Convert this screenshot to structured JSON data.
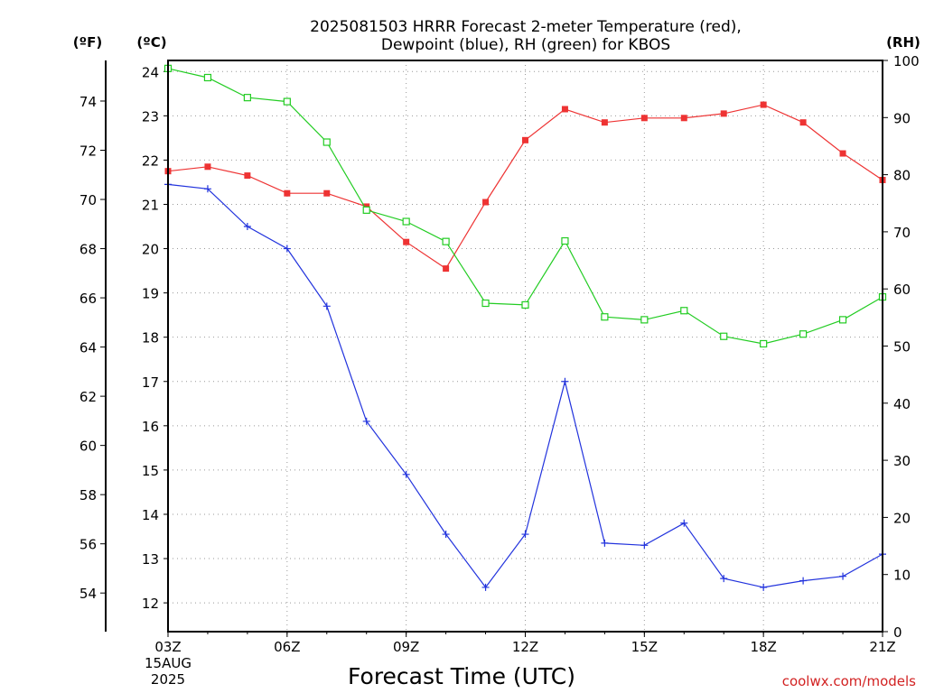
{
  "chart_data": {
    "type": "line",
    "title_line1": "2025081503 HRRR Forecast 2-meter Temperature (red),",
    "title_line2": "Dewpoint (blue), RH (green) for KBOS",
    "xlabel": "Forecast Time (UTC)",
    "credit": "coolwx.com/models",
    "unit_f": "(ºF)",
    "unit_c": "(ºC)",
    "unit_rh": "(RH)",
    "x_hours": [
      3,
      4,
      5,
      6,
      7,
      8,
      9,
      10,
      11,
      12,
      13,
      14,
      15,
      16,
      17,
      18,
      19,
      20,
      21
    ],
    "x_range": [
      3,
      21
    ],
    "x_ticks": [
      {
        "hour": 3,
        "label": "03Z"
      },
      {
        "hour": 6,
        "label": "06Z"
      },
      {
        "hour": 9,
        "label": "09Z"
      },
      {
        "hour": 12,
        "label": "12Z"
      },
      {
        "hour": 15,
        "label": "15Z"
      },
      {
        "hour": 18,
        "label": "18Z"
      },
      {
        "hour": 21,
        "label": "21Z"
      }
    ],
    "date_label_1": "15AUG",
    "date_label_2": "2025",
    "celsius_range": [
      11.35,
      24.25
    ],
    "celsius_ticks": [
      12,
      13,
      14,
      15,
      16,
      17,
      18,
      19,
      20,
      21,
      22,
      23,
      24
    ],
    "fahrenheit_ticks": [
      54,
      56,
      58,
      60,
      62,
      64,
      66,
      68,
      70,
      72,
      74
    ],
    "rh_range": [
      0,
      100
    ],
    "rh_ticks": [
      0,
      10,
      20,
      30,
      40,
      50,
      60,
      70,
      80,
      90,
      100
    ],
    "grid": true,
    "series": [
      {
        "name": "Temperature",
        "axis": "celsius",
        "color": "#ee3333",
        "marker": "filled-square",
        "values": [
          21.75,
          21.85,
          21.65,
          21.25,
          21.25,
          20.95,
          20.15,
          19.55,
          21.05,
          22.45,
          23.15,
          22.85,
          22.95,
          22.95,
          23.05,
          23.25,
          22.85,
          22.15,
          21.55
        ]
      },
      {
        "name": "Dewpoint",
        "axis": "celsius",
        "color": "#2233dd",
        "marker": "plus",
        "values": [
          21.45,
          21.35,
          20.5,
          20.0,
          18.7,
          16.1,
          14.9,
          13.55,
          12.35,
          13.55,
          17.0,
          13.35,
          13.3,
          13.8,
          12.55,
          12.35,
          12.5,
          12.6,
          13.1
        ]
      },
      {
        "name": "RH",
        "axis": "rh",
        "color": "#22cc22",
        "marker": "open-square",
        "values": [
          98.6,
          97.0,
          93.5,
          92.8,
          85.7,
          73.8,
          71.8,
          68.3,
          57.5,
          57.2,
          68.4,
          55.1,
          54.6,
          56.2,
          51.7,
          50.4,
          52.1,
          54.6,
          58.6
        ]
      }
    ]
  }
}
